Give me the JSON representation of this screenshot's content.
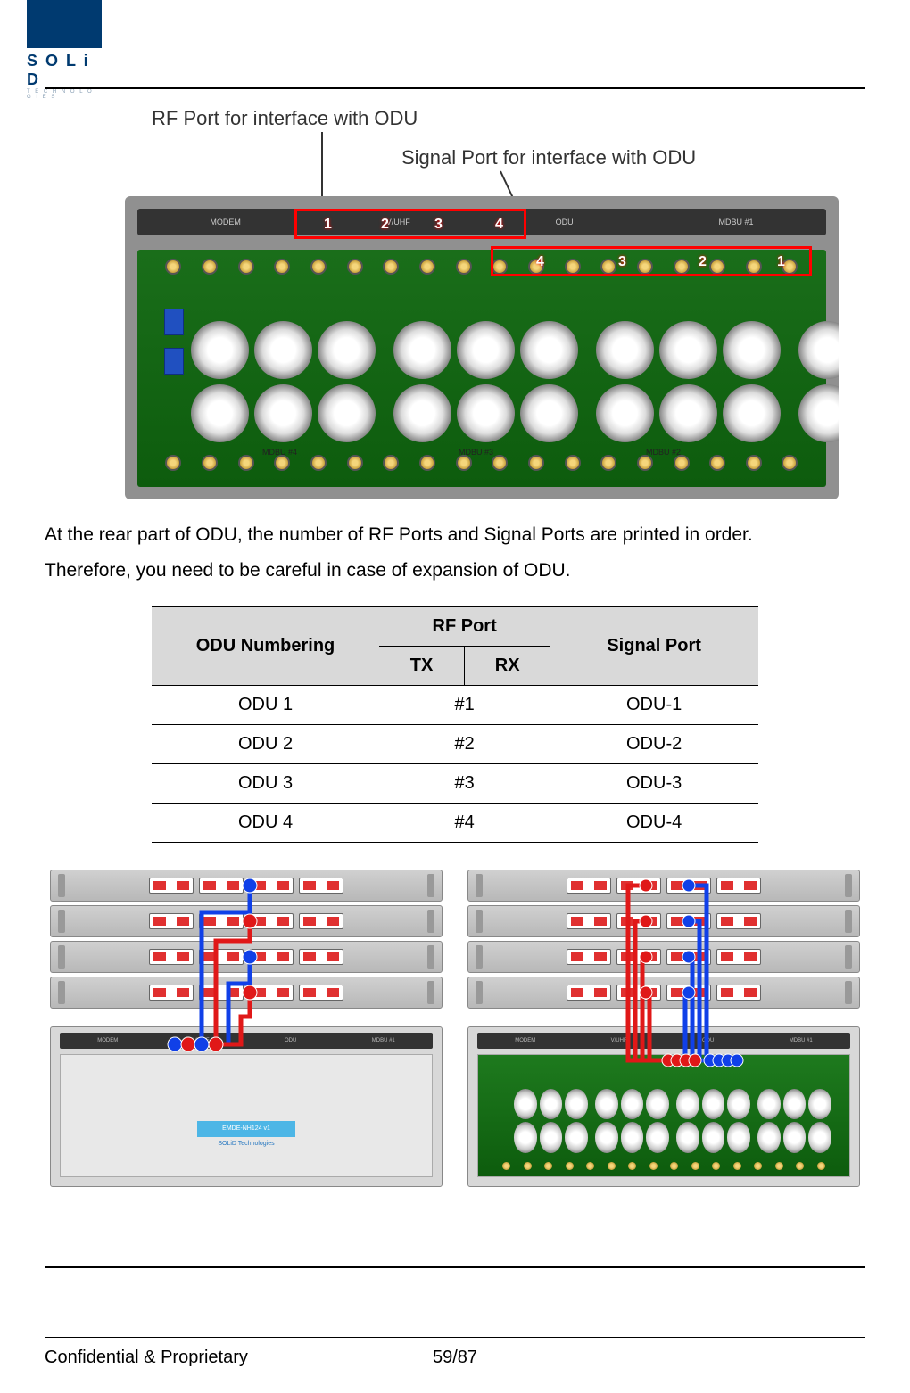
{
  "logo": {
    "brand": "S O L i D",
    "sub": "T E C H N O L O G I E S"
  },
  "fig1": {
    "label_rf": "RF Port for interface with ODU",
    "label_signal": "Signal Port for interface with ODU",
    "top_labels": [
      "MODEM",
      "V/UHF",
      "ODU",
      "MDBU #1"
    ],
    "red_box_1_nums": [
      "1",
      "2",
      "3",
      "4"
    ],
    "red_box_2_nums": [
      "4",
      "3",
      "2",
      "1"
    ],
    "bottom_labels": [
      "MDBU #4",
      "MDBU #3",
      "MDBU #2"
    ],
    "colors": {
      "pcb_green": "#0d5c0d",
      "callout_red": "#ff0000",
      "gold": "#c9a13b",
      "blue_block": "#2050c0"
    }
  },
  "body_text_1": "At the rear part of ODU, the number of RF Ports and Signal Ports are printed in order.",
  "body_text_2": "Therefore, you need to be careful in case of expansion of ODU.",
  "table": {
    "headers": {
      "odu_numbering": "ODU Numbering",
      "rf_port": "RF Port",
      "tx": "TX",
      "rx": "RX",
      "signal_port": "Signal Port"
    },
    "rows": [
      {
        "odu": "ODU 1",
        "rf": "#1",
        "signal": "ODU-1"
      },
      {
        "odu": "ODU 2",
        "rf": "#2",
        "signal": "ODU-2"
      },
      {
        "odu": "ODU 3",
        "rf": "#3",
        "signal": "ODU-3"
      },
      {
        "odu": "ODU 4",
        "rf": "#4",
        "signal": "ODU-4"
      }
    ],
    "bg_header": "#d9d9d9"
  },
  "wiring": {
    "bottom_bar_labels": [
      "MODEM",
      "V/UHF",
      "ODU",
      "MDBU #1"
    ],
    "bottom_label_row": [
      "MDBU #4",
      "MDBU #3",
      "MDBU #2"
    ],
    "front_label": "EMDE-NH124  v1",
    "front_sub": "SOLiD Technologies",
    "wire_blue": "#1040e8",
    "wire_red": "#e01818",
    "node_blue": "#1040e8",
    "node_red": "#e01818"
  },
  "footer": {
    "confidential": "Confidential & Proprietary",
    "page": "59/87"
  }
}
